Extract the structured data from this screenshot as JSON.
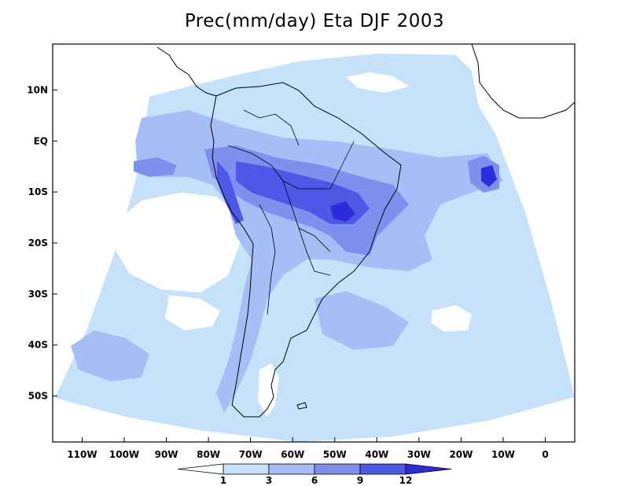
{
  "title": "Prec(mm/day) Eta DJF 2003",
  "map": {
    "lon_range": [
      -117,
      7
    ],
    "lat_range": [
      -59,
      19
    ],
    "lon_ticks": [
      {
        "value": -110,
        "label": "110W"
      },
      {
        "value": -100,
        "label": "100W"
      },
      {
        "value": -90,
        "label": "90W"
      },
      {
        "value": -80,
        "label": "80W"
      },
      {
        "value": -70,
        "label": "70W"
      },
      {
        "value": -60,
        "label": "60W"
      },
      {
        "value": -50,
        "label": "50W"
      },
      {
        "value": -40,
        "label": "40W"
      },
      {
        "value": -30,
        "label": "30W"
      },
      {
        "value": -20,
        "label": "20W"
      },
      {
        "value": -10,
        "label": "10W"
      },
      {
        "value": 0,
        "label": "0"
      }
    ],
    "lat_ticks": [
      {
        "value": 10,
        "label": "10N"
      },
      {
        "value": 0,
        "label": "EQ"
      },
      {
        "value": -10,
        "label": "10S"
      },
      {
        "value": -20,
        "label": "20S"
      },
      {
        "value": -30,
        "label": "30S"
      },
      {
        "value": -40,
        "label": "40S"
      },
      {
        "value": -50,
        "label": "50S"
      }
    ]
  },
  "colorbar": {
    "levels": [
      "1",
      "3",
      "6",
      "9",
      "12"
    ],
    "colors": [
      "#ffffff",
      "#c6e2fb",
      "#a6bdf6",
      "#7f8fee",
      "#4e58e6",
      "#2d2bdc"
    ]
  }
}
